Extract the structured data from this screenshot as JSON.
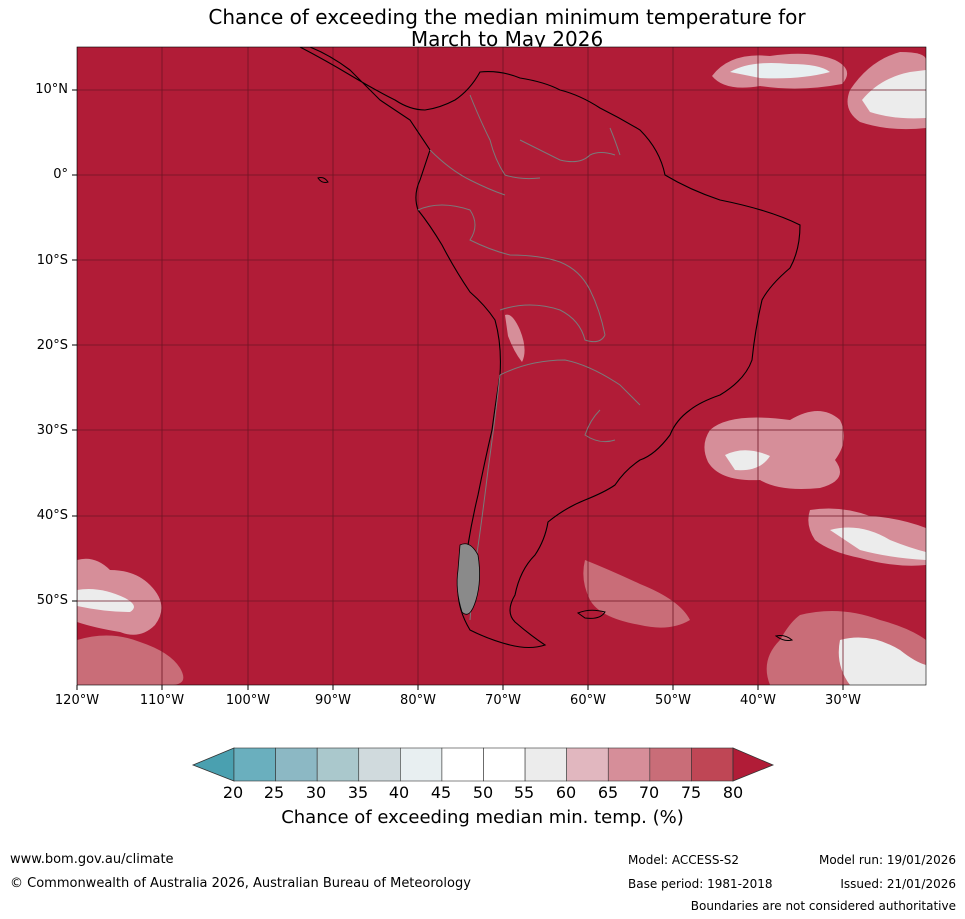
{
  "title": {
    "line1": "Chance of exceeding the median minimum temperature for",
    "line2": "March to May 2026"
  },
  "map": {
    "background_color": "#b11c37",
    "lat_labels": [
      "10°N",
      "0°",
      "10°S",
      "20°S",
      "30°S",
      "40°S",
      "50°S"
    ],
    "lon_labels": [
      "120°W",
      "110°W",
      "100°W",
      "90°W",
      "80°W",
      "70°W",
      "60°W",
      "50°W",
      "40°W",
      "30°W"
    ],
    "gridlines": true
  },
  "colorbar": {
    "ticks": [
      "20",
      "25",
      "30",
      "35",
      "40",
      "45",
      "50",
      "55",
      "60",
      "65",
      "70",
      "75",
      "80"
    ],
    "colors": [
      "#6aafbe",
      "#8cb8c4",
      "#aac8cc",
      "#d0dadd",
      "#e8eff1",
      "#ffffff",
      "#ffffff",
      "#ececec",
      "#e1b7bf",
      "#d68e99",
      "#c96d78",
      "#bf4655"
    ],
    "under_color": "#4aa0b0",
    "over_color": "#b11c37",
    "label": "Chance of exceeding median min. temp. (%)"
  },
  "footer": {
    "website": "www.bom.gov.au/climate",
    "copyright": "© Commonwealth of Australia 2026, Australian Bureau of Meteorology",
    "model": "Model: ACCESS-S2",
    "base_period": "Base period: 1981-2018",
    "model_run": "Model run: 19/01/2026",
    "issued": "Issued: 21/01/2026",
    "disclaimer": "Boundaries are not considered authoritative"
  }
}
